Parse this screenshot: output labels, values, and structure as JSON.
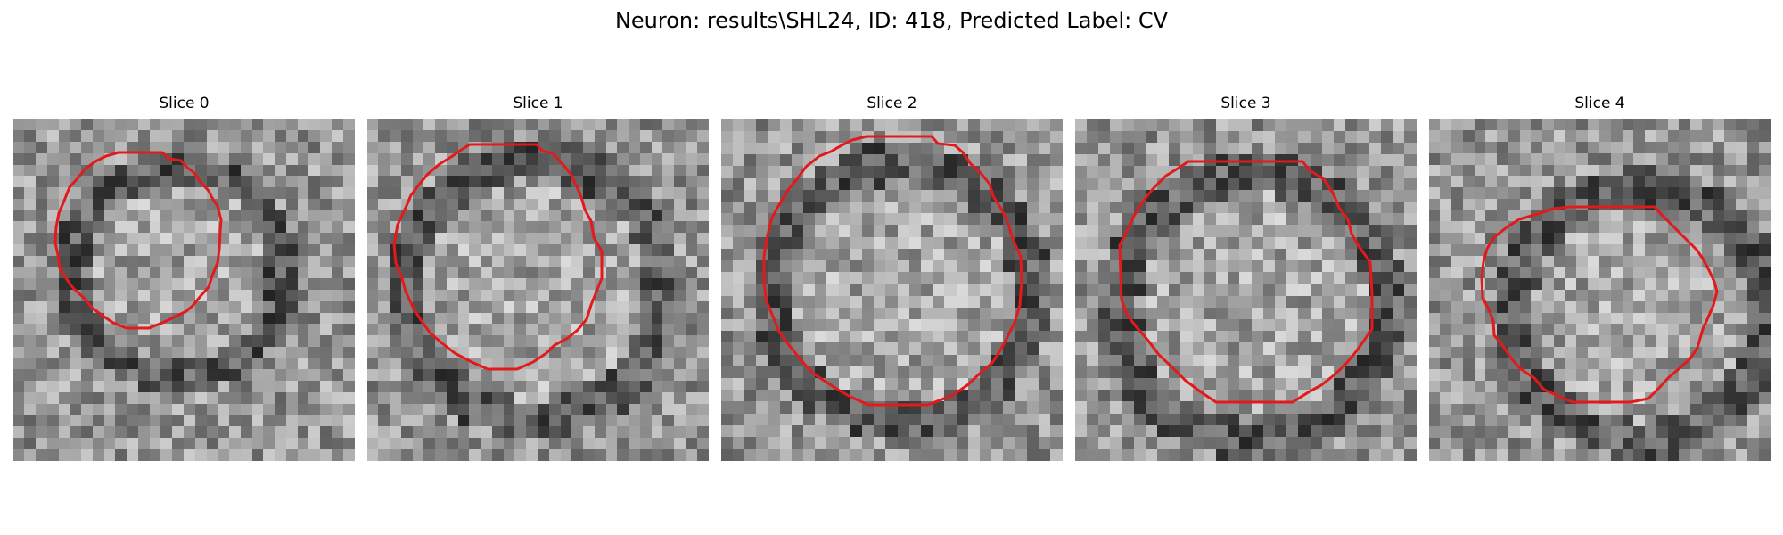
{
  "figure": {
    "title": "Neuron: results\\SHL24, ID: 418, Predicted Label: CV"
  },
  "panels": [
    {
      "title": "Slice 0"
    },
    {
      "title": "Slice 1"
    },
    {
      "title": "Slice 2"
    },
    {
      "title": "Slice 3"
    },
    {
      "title": "Slice 4"
    }
  ],
  "colors": {
    "contour": "#e31a1c",
    "background": "#ffffff"
  },
  "image_style": "grayscale noisy microscopy patch with red cell contour"
}
